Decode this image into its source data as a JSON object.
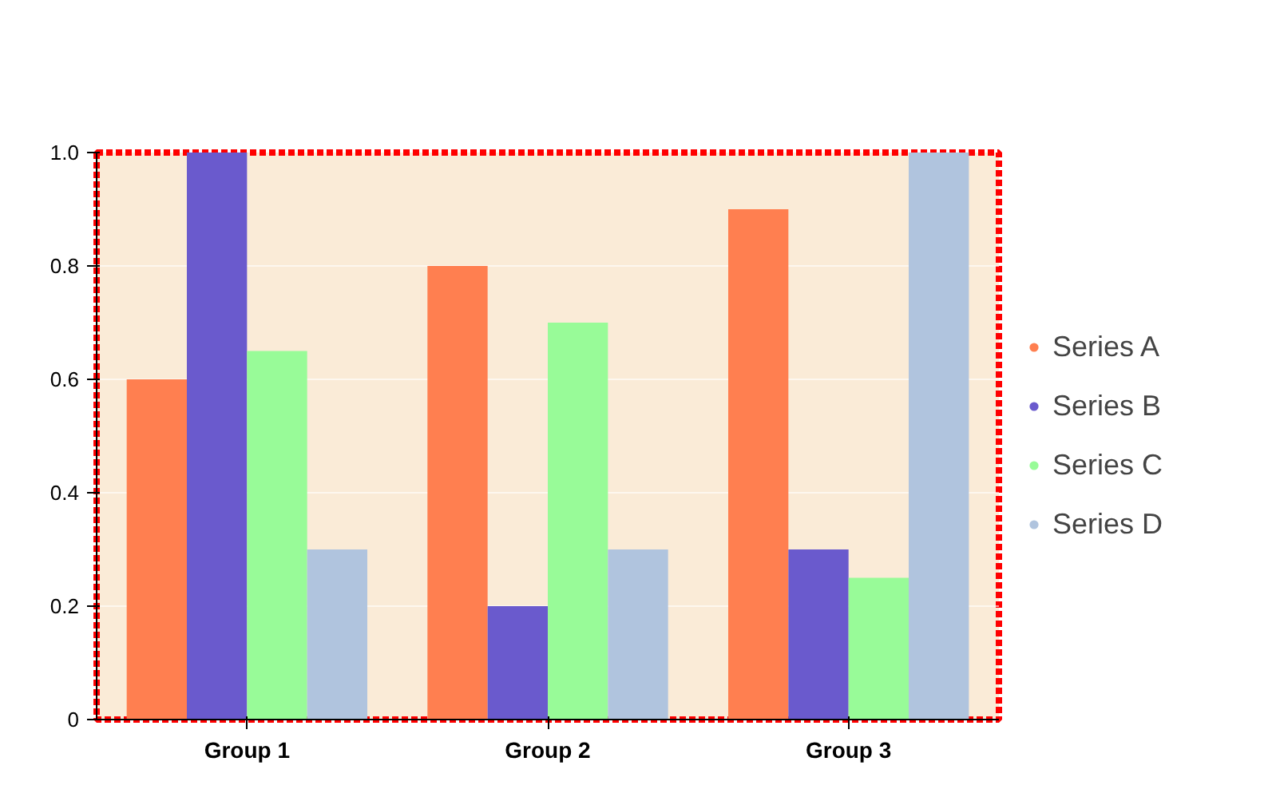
{
  "chart_data": {
    "type": "bar",
    "categories": [
      "Group 1",
      "Group 2",
      "Group 3"
    ],
    "series": [
      {
        "name": "Series A",
        "color": "#ff7f50",
        "values": [
          0.6,
          0.8,
          0.9
        ]
      },
      {
        "name": "Series B",
        "color": "#6a5acd",
        "values": [
          1.0,
          0.2,
          0.3
        ]
      },
      {
        "name": "Series C",
        "color": "#98fb98",
        "values": [
          0.65,
          0.7,
          0.25
        ]
      },
      {
        "name": "Series D",
        "color": "#b0c4de",
        "values": [
          0.3,
          0.3,
          1.0
        ]
      }
    ],
    "ylim": [
      0,
      1.0
    ],
    "yticks": [
      0,
      {
        "value": 0.2,
        "label": "0.2"
      },
      {
        "value": 0.4,
        "label": "0.4"
      },
      {
        "value": 0.6,
        "label": "0.6"
      },
      {
        "value": 0.8,
        "label": "0.8"
      },
      {
        "value": 1.0,
        "label": "1.0"
      }
    ],
    "grid": "y",
    "legend": "right"
  }
}
